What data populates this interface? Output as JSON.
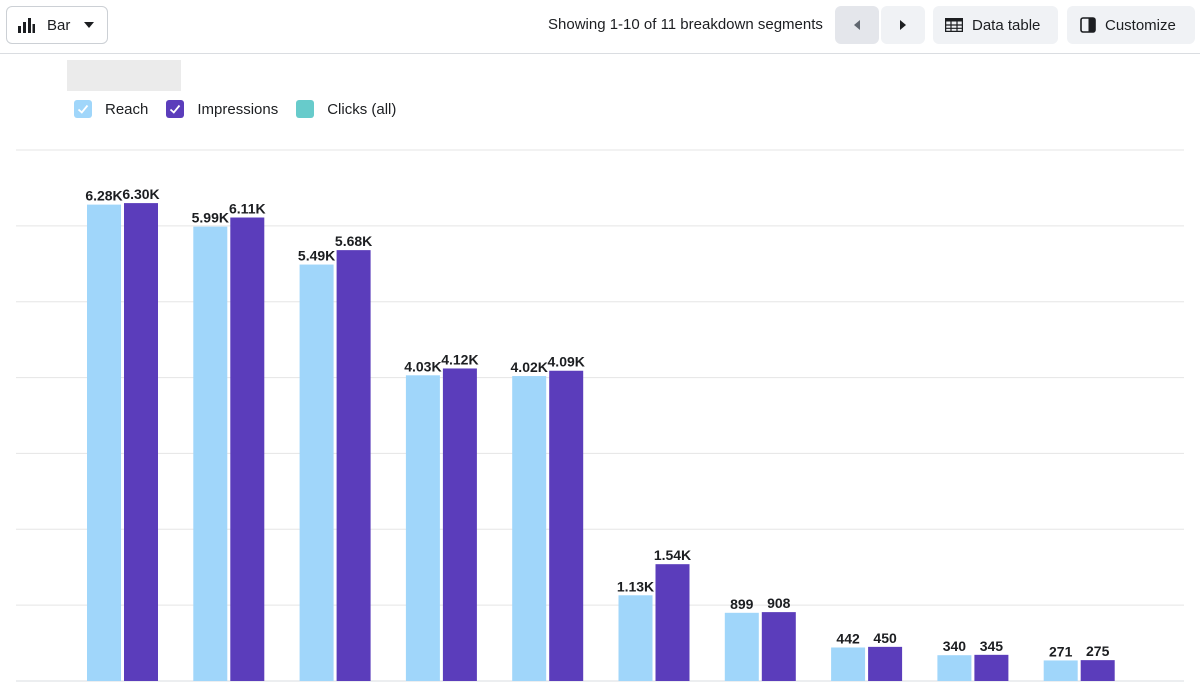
{
  "toolbar": {
    "chart_type_label": "Bar",
    "chart_type_icon": "bar-chart-icon",
    "showing_text": "Showing 1-10 of 11 breakdown segments",
    "prev_icon": "triangle-left-icon",
    "next_icon": "triangle-right-icon",
    "data_table_label": "Data table",
    "data_table_icon": "table-icon",
    "customize_label": "Customize",
    "customize_icon": "panel-icon"
  },
  "legend": [
    {
      "label": "Reach",
      "color": "#a0d6fa",
      "checked": true
    },
    {
      "label": "Impressions",
      "color": "#5b3dbb",
      "checked": true
    },
    {
      "label": "Clicks (all)",
      "color": "#67cbcb",
      "checked": false
    }
  ],
  "colors": {
    "reach": "#a0d6fa",
    "impressions": "#5b3dbb",
    "clicks": "#67cbcb",
    "gridline": "#e5e5e5"
  },
  "chart_data": {
    "type": "bar",
    "categories": [
      "",
      "",
      "",
      "",
      "",
      "",
      "",
      "",
      "",
      ""
    ],
    "series": [
      {
        "name": "Reach",
        "color": "#a0d6fa",
        "values": [
          6280,
          5990,
          5490,
          4030,
          4020,
          1130,
          899,
          442,
          340,
          271
        ],
        "labels": [
          "6.28K",
          "5.99K",
          "5.49K",
          "4.03K",
          "4.02K",
          "1.13K",
          "899",
          "442",
          "340",
          "271"
        ]
      },
      {
        "name": "Impressions",
        "color": "#5b3dbb",
        "values": [
          6300,
          6110,
          5680,
          4120,
          4090,
          1540,
          908,
          450,
          345,
          275
        ],
        "labels": [
          "6.30K",
          "6.11K",
          "5.68K",
          "4.12K",
          "4.09K",
          "1.54K",
          "908",
          "450",
          "345",
          "275"
        ]
      }
    ],
    "ylim": [
      0,
      7000
    ],
    "grid": true,
    "legend_position": "top-left"
  }
}
